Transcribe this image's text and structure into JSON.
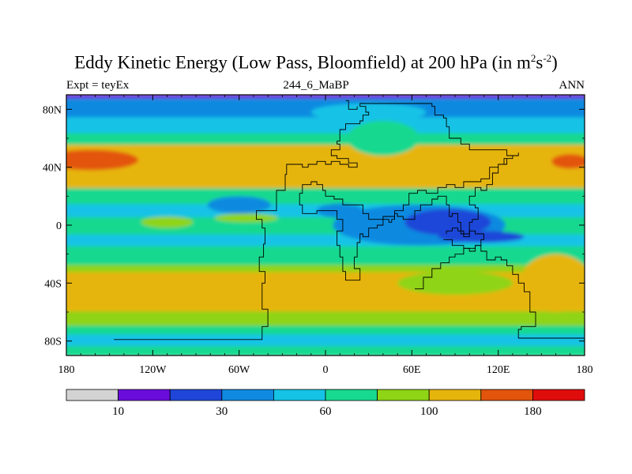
{
  "chart_data": {
    "type": "heatmap",
    "title_prefix": "Eddy Kinetic Energy (Low Pass, Bloomfield) at 200 hPa (in m",
    "title_sup1": "2",
    "title_mid": "s",
    "title_sup2": "-2",
    "title_suffix": ")",
    "subtitle_left": "Expt = teyEx",
    "subtitle_center": "244_6_MaBP",
    "subtitle_right": "ANN",
    "x_range": [
      -180,
      180
    ],
    "y_range": [
      -90,
      90
    ],
    "x_ticks": [
      {
        "value": -180,
        "label": "180"
      },
      {
        "value": -120,
        "label": "120W"
      },
      {
        "value": -60,
        "label": "60W"
      },
      {
        "value": 0,
        "label": "0"
      },
      {
        "value": 60,
        "label": "60E"
      },
      {
        "value": 120,
        "label": "120E"
      },
      {
        "value": 180,
        "label": "180"
      }
    ],
    "y_ticks": [
      {
        "value": 80,
        "label": "80N"
      },
      {
        "value": 40,
        "label": "40N"
      },
      {
        "value": 0,
        "label": "0"
      },
      {
        "value": -40,
        "label": "40S"
      },
      {
        "value": -80,
        "label": "80S"
      }
    ],
    "colorbar": {
      "colors": [
        "#d3d3d3",
        "#6a0ddb",
        "#1f46d8",
        "#0f8ae0",
        "#15c3e6",
        "#17d98f",
        "#8fd415",
        "#e6b50b",
        "#e3540c",
        "#e00d0d"
      ],
      "labels": [
        {
          "boundary": 1,
          "label": "10"
        },
        {
          "boundary": 3,
          "label": "30"
        },
        {
          "boundary": 5,
          "label": "60"
        },
        {
          "boundary": 7,
          "label": "100"
        },
        {
          "boundary": 9,
          "label": "180"
        }
      ]
    },
    "bands": [
      {
        "lat_top": 90,
        "lat_bot": 87,
        "level": 1
      },
      {
        "lat_top": 87,
        "lat_bot": 74,
        "level": 3
      },
      {
        "lat_top": 74,
        "lat_bot": 63,
        "level": 4
      },
      {
        "lat_top": 63,
        "lat_bot": 55,
        "level": 5
      },
      {
        "lat_top": 55,
        "lat_bot": 25,
        "level": 7
      },
      {
        "lat_top": 25,
        "lat_bot": 14,
        "level": 5
      },
      {
        "lat_top": 14,
        "lat_bot": 5,
        "level": 4
      },
      {
        "lat_top": 5,
        "lat_bot": -7,
        "level": 5
      },
      {
        "lat_top": -7,
        "lat_bot": -15,
        "level": 4
      },
      {
        "lat_top": -15,
        "lat_bot": -28,
        "level": 5
      },
      {
        "lat_top": -28,
        "lat_bot": -33,
        "level": 6
      },
      {
        "lat_top": -33,
        "lat_bot": -60,
        "level": 7
      },
      {
        "lat_top": -60,
        "lat_bot": -70,
        "level": 6
      },
      {
        "lat_top": -70,
        "lat_bot": -76,
        "level": 5
      },
      {
        "lat_top": -76,
        "lat_bot": -84,
        "level": 4
      },
      {
        "lat_top": -84,
        "lat_bot": -90,
        "level": 5
      }
    ],
    "blobs": [
      {
        "lon": -163,
        "lat": 45,
        "rx": 33,
        "ry": 7,
        "level": 8
      },
      {
        "lon": 170,
        "lat": 44,
        "rx": 13,
        "ry": 5,
        "level": 8
      },
      {
        "lon": -110,
        "lat": 2,
        "rx": 18,
        "ry": 4,
        "level": 6
      },
      {
        "lon": -55,
        "lat": 5,
        "rx": 22,
        "ry": 3,
        "level": 6
      },
      {
        "lon": 10,
        "lat": 10,
        "rx": 16,
        "ry": 5,
        "level": 3
      },
      {
        "lon": -60,
        "lat": 14,
        "rx": 22,
        "ry": 6,
        "level": 3
      },
      {
        "lon": 30,
        "lat": -3,
        "rx": 12,
        "ry": 3,
        "level": 6
      },
      {
        "lon": 65,
        "lat": 0,
        "rx": 60,
        "ry": 14,
        "level": 3
      },
      {
        "lon": 85,
        "lat": 2,
        "rx": 30,
        "ry": 9,
        "level": 2
      },
      {
        "lon": 108,
        "lat": -8,
        "rx": 30,
        "ry": 4,
        "level": 2
      },
      {
        "lon": 90,
        "lat": -40,
        "rx": 40,
        "ry": 8,
        "level": 6
      },
      {
        "lon": 160,
        "lat": -40,
        "rx": 25,
        "ry": 20,
        "level": 7
      },
      {
        "lon": 40,
        "lat": 60,
        "rx": 25,
        "ry": 12,
        "level": 5
      },
      {
        "lon": 30,
        "lat": 78,
        "rx": 40,
        "ry": 6,
        "level": 4
      }
    ],
    "coastlines": [
      [
        [
          -147,
          -79
        ],
        [
          -45,
          -79
        ],
        [
          -44,
          -70
        ],
        [
          -40,
          -58
        ],
        [
          -44,
          -40
        ],
        [
          -42,
          -32
        ],
        [
          -46,
          -22
        ],
        [
          -43,
          -13
        ],
        [
          -42,
          -2
        ],
        [
          -44,
          4
        ],
        [
          -48,
          10
        ],
        [
          -34,
          10
        ],
        [
          -34,
          24
        ],
        [
          -30,
          24
        ],
        [
          -28,
          35
        ],
        [
          -27,
          42
        ],
        [
          -20,
          42
        ],
        [
          -16,
          40
        ],
        [
          -12,
          42
        ],
        [
          -6,
          44
        ],
        [
          0,
          42
        ],
        [
          4,
          44
        ],
        [
          10,
          42
        ],
        [
          16,
          40
        ],
        [
          20,
          40
        ],
        [
          22,
          43
        ],
        [
          16,
          46
        ],
        [
          8,
          48
        ],
        [
          4,
          52
        ],
        [
          10,
          56
        ],
        [
          8,
          58
        ],
        [
          10,
          62
        ],
        [
          10,
          66
        ],
        [
          14,
          70
        ],
        [
          20,
          70
        ],
        [
          24,
          72
        ],
        [
          26,
          76
        ],
        [
          30,
          78
        ],
        [
          28,
          82
        ],
        [
          24,
          84
        ],
        [
          34,
          84
        ],
        [
          44,
          84
        ],
        [
          60,
          84
        ],
        [
          74,
          82
        ],
        [
          76,
          80
        ],
        [
          76,
          76
        ],
        [
          82,
          74
        ],
        [
          84,
          68
        ],
        [
          86,
          60
        ],
        [
          94,
          56
        ],
        [
          100,
          52
        ],
        [
          110,
          52
        ],
        [
          122,
          52
        ],
        [
          126,
          48
        ],
        [
          130,
          46
        ],
        [
          126,
          42
        ],
        [
          120,
          36
        ],
        [
          116,
          28
        ],
        [
          112,
          24
        ],
        [
          108,
          26
        ],
        [
          104,
          20
        ],
        [
          100,
          14
        ],
        [
          104,
          12
        ],
        [
          106,
          4
        ],
        [
          102,
          2
        ],
        [
          100,
          -6
        ],
        [
          96,
          -6
        ],
        [
          94,
          2
        ],
        [
          92,
          8
        ],
        [
          88,
          6
        ],
        [
          86,
          14
        ],
        [
          84,
          20
        ],
        [
          78,
          18
        ],
        [
          74,
          14
        ],
        [
          66,
          10
        ],
        [
          62,
          4
        ],
        [
          58,
          4
        ],
        [
          54,
          6
        ],
        [
          50,
          8
        ],
        [
          48,
          4
        ],
        [
          46,
          2
        ],
        [
          44,
          4
        ],
        [
          40,
          0
        ],
        [
          36,
          -2
        ],
        [
          30,
          -8
        ],
        [
          26,
          -6
        ],
        [
          24,
          -12
        ],
        [
          22,
          -22
        ],
        [
          20,
          -30
        ],
        [
          24,
          -38
        ],
        [
          18,
          -38
        ],
        [
          14,
          -32
        ],
        [
          12,
          -22
        ],
        [
          10,
          -14
        ],
        [
          8,
          -4
        ],
        [
          12,
          4
        ],
        [
          8,
          10
        ],
        [
          0,
          10
        ],
        [
          -6,
          8
        ],
        [
          -12,
          8
        ],
        [
          -16,
          14
        ],
        [
          -18,
          22
        ],
        [
          -16,
          28
        ],
        [
          -10,
          30
        ],
        [
          -6,
          28
        ],
        [
          -2,
          24
        ],
        [
          0,
          20
        ],
        [
          6,
          18
        ],
        [
          12,
          14
        ],
        [
          20,
          14
        ],
        [
          26,
          8
        ],
        [
          30,
          4
        ],
        [
          34,
          4
        ],
        [
          40,
          6
        ],
        [
          48,
          10
        ],
        [
          54,
          14
        ],
        [
          58,
          22
        ],
        [
          64,
          24
        ],
        [
          70,
          22
        ],
        [
          78,
          26
        ],
        [
          84,
          28
        ],
        [
          90,
          26
        ],
        [
          96,
          30
        ],
        [
          104,
          30
        ],
        [
          108,
          32
        ],
        [
          114,
          40
        ],
        [
          120,
          42
        ],
        [
          124,
          46
        ],
        [
          130,
          48
        ],
        [
          134,
          50
        ]
      ],
      [
        [
          62,
          -44
        ],
        [
          68,
          -36
        ],
        [
          74,
          -30
        ],
        [
          80,
          -26
        ],
        [
          86,
          -22
        ],
        [
          90,
          -20
        ],
        [
          96,
          -16
        ],
        [
          104,
          -14
        ],
        [
          108,
          -18
        ],
        [
          112,
          -24
        ],
        [
          118,
          -22
        ],
        [
          122,
          -24
        ],
        [
          126,
          -28
        ],
        [
          130,
          -34
        ],
        [
          134,
          -40
        ],
        [
          138,
          -46
        ],
        [
          142,
          -54
        ],
        [
          142,
          -60
        ],
        [
          146,
          -62
        ],
        [
          146,
          -70
        ],
        [
          136,
          -72
        ],
        [
          134,
          -78
        ],
        [
          154,
          -78
        ],
        [
          180,
          -80
        ]
      ],
      [
        [
          14,
          86
        ],
        [
          16,
          80
        ],
        [
          20,
          80
        ],
        [
          22,
          82
        ]
      ],
      [
        [
          82,
          -10
        ],
        [
          86,
          -10
        ],
        [
          88,
          -14
        ],
        [
          92,
          -14
        ],
        [
          96,
          -16
        ],
        [
          100,
          -18
        ],
        [
          104,
          -14
        ],
        [
          108,
          -10
        ],
        [
          110,
          -6
        ],
        [
          104,
          -4
        ],
        [
          100,
          -8
        ],
        [
          96,
          -4
        ],
        [
          92,
          -2
        ],
        [
          88,
          -4
        ],
        [
          84,
          -6
        ]
      ]
    ]
  }
}
